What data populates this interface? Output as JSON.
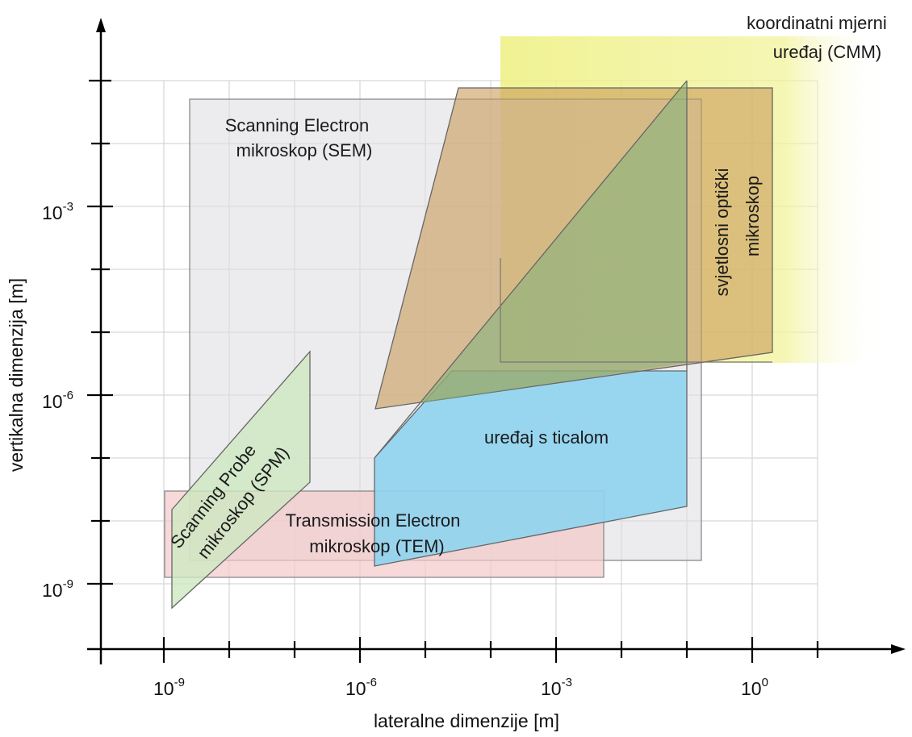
{
  "axes": {
    "x_title": "lateralne dimenzije [m]",
    "y_title": "vertikalna dimenzija [m]",
    "x_ticks": [
      {
        "base": "10",
        "exp": "-9"
      },
      {
        "base": "10",
        "exp": "-6"
      },
      {
        "base": "10",
        "exp": "-3"
      },
      {
        "base": "10",
        "exp": "0"
      }
    ],
    "y_ticks": [
      {
        "base": "10",
        "exp": "-3"
      },
      {
        "base": "10",
        "exp": "-6"
      },
      {
        "base": "10",
        "exp": "-9"
      }
    ]
  },
  "regions": {
    "cmm": {
      "line1": "koordinatni mjerni",
      "line2": "uređaj (CMM)",
      "color": "#eef080"
    },
    "sem": {
      "line1": "Scanning Electron",
      "line2": "mikroskop (SEM)",
      "color": "#e2e2e4"
    },
    "optical": {
      "line1": "svjetlosni optički",
      "line2": "mikroskop",
      "color": "#d3a86a"
    },
    "stylus": {
      "label": "uređaj s ticalom",
      "color": "#8cd3ef"
    },
    "tem": {
      "line1": "Transmission Electron",
      "line2": "mikroskop  (TEM)",
      "color": "#f3cccc"
    },
    "spm": {
      "line1": "Scanning Probe",
      "line2": "mikroskop (SPM)",
      "color": "#cfe8c4"
    }
  }
}
